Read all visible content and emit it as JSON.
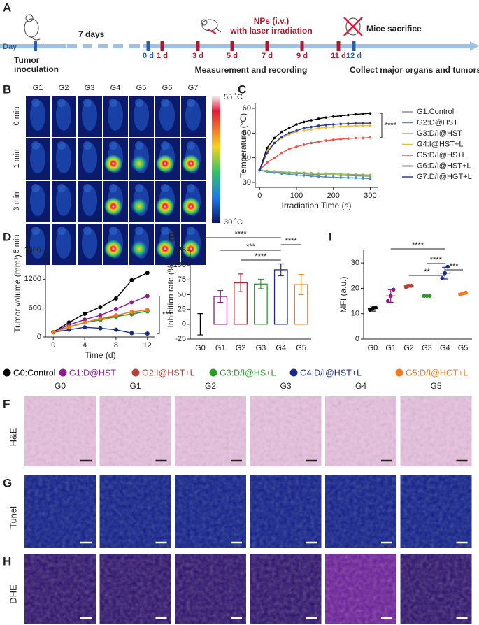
{
  "panel_a": {
    "label": "A",
    "day": "Day",
    "gap": "7 days",
    "inoculation": [
      "Tumor",
      "inoculation"
    ],
    "treatment": [
      "NPs (i.v.)",
      "with laser irradiation"
    ],
    "sacrifice": "Mice sacrifice",
    "measurement": "Measurement and recording",
    "collect": "Collect major organs and tumors",
    "timepoints": [
      {
        "label": "0 d",
        "color": "#2b5fa8"
      },
      {
        "label": "1 d",
        "color": "#b2182b"
      },
      {
        "label": "3 d",
        "color": "#b2182b"
      },
      {
        "label": "5 d",
        "color": "#b2182b"
      },
      {
        "label": "7 d",
        "color": "#b2182b"
      },
      {
        "label": "9 d",
        "color": "#b2182b"
      },
      {
        "label": "11 d",
        "color": "#b2182b"
      },
      {
        "label": "12 d",
        "color": "#2b5fa8"
      }
    ]
  },
  "panel_b": {
    "label": "B",
    "columns": [
      "G1",
      "G2",
      "G3",
      "G4",
      "G5",
      "G6",
      "G7"
    ],
    "rows": [
      "0 min",
      "1 min",
      "3 min",
      "5 min"
    ],
    "colorbar_max": "55 ˚C",
    "colorbar_min": "30 ˚C"
  },
  "chart_data": [
    {
      "type": "line",
      "label": "C",
      "xlabel": "Irradiation Time (s)",
      "ylabel": "Temperature (°C)",
      "x": [
        0,
        20,
        40,
        60,
        80,
        100,
        120,
        140,
        160,
        180,
        200,
        220,
        240,
        260,
        280,
        300
      ],
      "xlim": [
        -12,
        320
      ],
      "xticks": [
        0,
        100,
        200,
        300
      ],
      "ylim": [
        28,
        62
      ],
      "yticks": [
        30,
        40,
        50,
        60
      ],
      "series": [
        {
          "name": "G1:Control",
          "color": "#8a8a8a",
          "values": [
            35,
            34.5,
            34.3,
            34,
            33.8,
            33.6,
            33.5,
            33.3,
            33.2,
            33.1,
            33,
            32.9,
            32.8,
            32.7,
            32.6,
            32.5
          ]
        },
        {
          "name": "G2:D@HST",
          "color": "#4a8fc9",
          "values": [
            35,
            34.3,
            34,
            33.6,
            33.3,
            33,
            32.8,
            32.6,
            32.4,
            32.2,
            32.1,
            32,
            31.9,
            31.8,
            31.7,
            31.5
          ]
        },
        {
          "name": "G3:D/I@HST",
          "color": "#8cc04a",
          "values": [
            35,
            34.7,
            34.5,
            34.3,
            34.1,
            34,
            33.9,
            33.8,
            33.7,
            33.6,
            33.5,
            33.4,
            33.3,
            33.2,
            33.1,
            33
          ]
        },
        {
          "name": "G4:I@HST+L",
          "color": "#f2b632",
          "values": [
            35,
            43,
            46,
            48,
            49.5,
            50.5,
            51,
            51.5,
            52,
            52.3,
            52.5,
            52.7,
            52.8,
            53,
            53,
            53
          ]
        },
        {
          "name": "G5:D/I@HS+L",
          "color": "#e8534a",
          "values": [
            35,
            38,
            40,
            42,
            43.5,
            44.5,
            45.3,
            46,
            46.5,
            47,
            47.3,
            47.6,
            47.8,
            48,
            48,
            48.2
          ]
        },
        {
          "name": "G6:D/I@HST+L",
          "color": "#000000",
          "values": [
            35,
            44,
            48,
            50.5,
            52,
            53.5,
            54.5,
            55.2,
            55.8,
            56.3,
            56.7,
            57,
            57.3,
            57.6,
            57.8,
            58
          ]
        },
        {
          "name": "G7:D/I@HGT+L",
          "color": "#2b3f99",
          "values": [
            35,
            42,
            46,
            48.5,
            50,
            51,
            52,
            52.5,
            53,
            53.3,
            53.5,
            53.7,
            53.8,
            54,
            54,
            54
          ]
        }
      ],
      "annotations": [
        {
          "text": "****",
          "between": [
            "G6:D/I@HST+L",
            "G5:D/I@HS+L"
          ]
        }
      ]
    },
    {
      "type": "line",
      "label": "D",
      "xlabel": "Time (d)",
      "ylabel": "Tumor volume (mm³)",
      "x": [
        0,
        2,
        4,
        6,
        8,
        10,
        12
      ],
      "xlim": [
        -1,
        13
      ],
      "xticks": [
        0,
        4,
        8,
        12
      ],
      "ylim": [
        0,
        1800
      ],
      "yticks": [
        0,
        600,
        1200,
        1800
      ],
      "series": [
        {
          "name": "G0:Control",
          "color": "#000000",
          "values": [
            100,
            300,
            480,
            620,
            800,
            1180,
            1330
          ]
        },
        {
          "name": "G1:D@HST",
          "color": "#8e1b8e",
          "values": [
            100,
            250,
            360,
            450,
            580,
            720,
            850
          ]
        },
        {
          "name": "G2:I@HST+L",
          "color": "#b5423a",
          "values": [
            100,
            200,
            300,
            380,
            430,
            470,
            540
          ]
        },
        {
          "name": "G3:D/I@HS+L",
          "color": "#2e9a2e",
          "values": [
            100,
            210,
            300,
            350,
            420,
            480,
            530
          ]
        },
        {
          "name": "G4:D/I@HST+L",
          "color": "#1a2a8c",
          "values": [
            100,
            150,
            200,
            180,
            150,
            80,
            70
          ]
        },
        {
          "name": "G5:D/I@HGT+L",
          "color": "#f07a1e",
          "values": [
            100,
            200,
            300,
            380,
            450,
            520,
            560
          ]
        }
      ],
      "annotations": [
        {
          "text": "***",
          "between": [
            "G1:D@HST",
            "G4:D/I@HST+L"
          ]
        }
      ]
    },
    {
      "type": "bar",
      "label": "E",
      "ylabel": "Inhibition rate (%)",
      "categories": [
        "G0",
        "G1",
        "G2",
        "G3",
        "G4",
        "G5"
      ],
      "values": [
        0,
        47,
        70,
        68,
        92,
        67
      ],
      "errors": [
        18,
        10,
        15,
        8,
        10,
        17
      ],
      "colors": [
        "#000000",
        "#8e1b8e",
        "#a8323c",
        "#2e9a2e",
        "#1a2a8c",
        "#f07a1e"
      ],
      "ylim": [
        -25,
        125
      ],
      "yticks": [
        -25,
        0,
        25,
        50,
        75,
        100,
        125
      ],
      "annotations": [
        {
          "text": "****",
          "between": [
            "G0",
            "G4"
          ]
        },
        {
          "text": "****",
          "between": [
            "G4",
            "G5"
          ]
        },
        {
          "text": "***",
          "between": [
            "G1",
            "G4"
          ]
        },
        {
          "text": "****",
          "between": [
            "G2",
            "G4"
          ]
        }
      ]
    },
    {
      "type": "dot",
      "label": "I",
      "ylabel": "MFI (a.u.)",
      "categories": [
        "G0",
        "G1",
        "G2",
        "G3",
        "G4",
        "G5"
      ],
      "values": [
        12,
        17,
        21,
        17,
        26,
        18
      ],
      "errors": [
        1,
        2.5,
        0.5,
        0.3,
        2.3,
        0.4
      ],
      "points": [
        [
          11.5,
          12,
          12.5
        ],
        [
          15,
          17,
          19.5
        ],
        [
          20.5,
          21,
          21
        ],
        [
          17,
          17,
          17
        ],
        [
          24,
          26,
          28.5
        ],
        [
          17.5,
          18,
          18.3
        ]
      ],
      "colors": [
        "#000000",
        "#8e1b8e",
        "#b5423a",
        "#2e9a2e",
        "#1a2a8c",
        "#f07a1e"
      ],
      "ylim": [
        0,
        35
      ],
      "yticks": [
        0,
        10,
        20,
        30
      ],
      "annotations": [
        {
          "text": "****",
          "between": [
            "G1",
            "G4"
          ]
        },
        {
          "text": "****",
          "between": [
            "G3",
            "G4"
          ]
        },
        {
          "text": "***",
          "between": [
            "G4",
            "G5"
          ]
        },
        {
          "text": "**",
          "between": [
            "G2",
            "G4"
          ]
        }
      ]
    }
  ],
  "panels_fgh": {
    "columns": [
      "G0",
      "G1",
      "G2",
      "G3",
      "G4",
      "G5"
    ],
    "rows": [
      {
        "label": "F",
        "stain": "H&E"
      },
      {
        "label": "G",
        "stain": "Tunel"
      },
      {
        "label": "H",
        "stain": "DHE"
      }
    ]
  }
}
